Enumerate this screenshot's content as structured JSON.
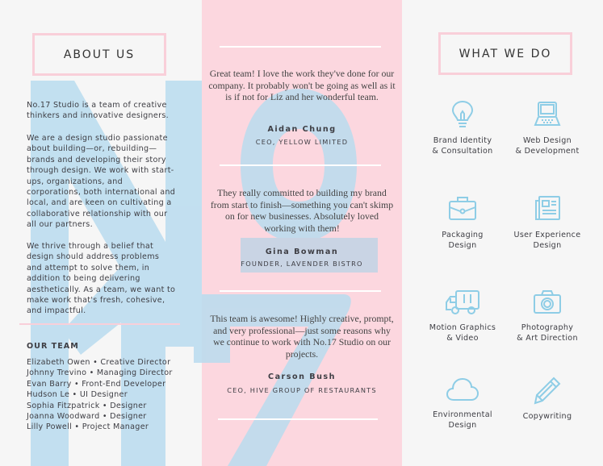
{
  "colors": {
    "background": "#f6f6f6",
    "pink": "#fcd7df",
    "blue": "#b9dcef",
    "icon": "#8ecde6"
  },
  "about": {
    "title": "ABOUT US",
    "paragraphs": [
      "No.17 Studio is a team of creative thinkers and innovative designers.",
      "We are a design studio passionate about building—or, rebuilding—brands and developing their story through design. We work with start-ups, organizations, and corporations, both international and local, and are keen on cultivating a collaborative relationship with our all our partners.",
      "We thrive through a belief that design should address problems and attempt to solve them, in addition to being delivering aesthetically. As a team, we want to make work that's fresh, cohesive, and impactful."
    ]
  },
  "team": {
    "title": "OUR TEAM",
    "members": [
      "Elizabeth Owen • Creative Director",
      "Johnny Trevino • Managing Director",
      "Evan Barry • Front-End Developer",
      "Hudson Le • UI Designer",
      "Sophia Fitzpatrick • Designer",
      "Joanna Woodward • Designer",
      "Lilly Powell • Project Manager"
    ]
  },
  "testimonials": [
    {
      "quote": "Great team! I love the work they've done for our company. It probably won't be going as well as it is if not for Liz and her wonderful team.",
      "name": "Aidan Chung",
      "role": "CEO, YELLOW LIMITED"
    },
    {
      "quote": "They really committed to building my brand from start to finish—something you can't skimp on for new businesses. Absolutely loved working with them!",
      "name": "Gina Bowman",
      "role": "FOUNDER, LAVENDER BISTRO"
    },
    {
      "quote": "This team is awesome! Highly creative, prompt, and very professional—just some reasons why we continue to work with No.17 Studio on our projects.",
      "name": "Carson Bush",
      "role": "CEO, HIVE GROUP OF RESTAURANTS"
    }
  ],
  "services": {
    "title": "WHAT WE DO",
    "items": [
      {
        "icon": "lightbulb-icon",
        "label1": "Brand Identity",
        "label2": "& Consultation"
      },
      {
        "icon": "laptop-icon",
        "label1": "Web Design",
        "label2": "& Development"
      },
      {
        "icon": "briefcase-icon",
        "label1": "Packaging",
        "label2": "Design"
      },
      {
        "icon": "newspaper-icon",
        "label1": "User Experience",
        "label2": "Design"
      },
      {
        "icon": "truck-icon",
        "label1": "Motion Graphics",
        "label2": "& Video"
      },
      {
        "icon": "camera-icon",
        "label1": "Photography",
        "label2": "& Art Direction"
      },
      {
        "icon": "cloud-icon",
        "label1": "Environmental",
        "label2": "Design"
      },
      {
        "icon": "pencil-icon",
        "label1": "Copywriting",
        "label2": ""
      }
    ]
  }
}
